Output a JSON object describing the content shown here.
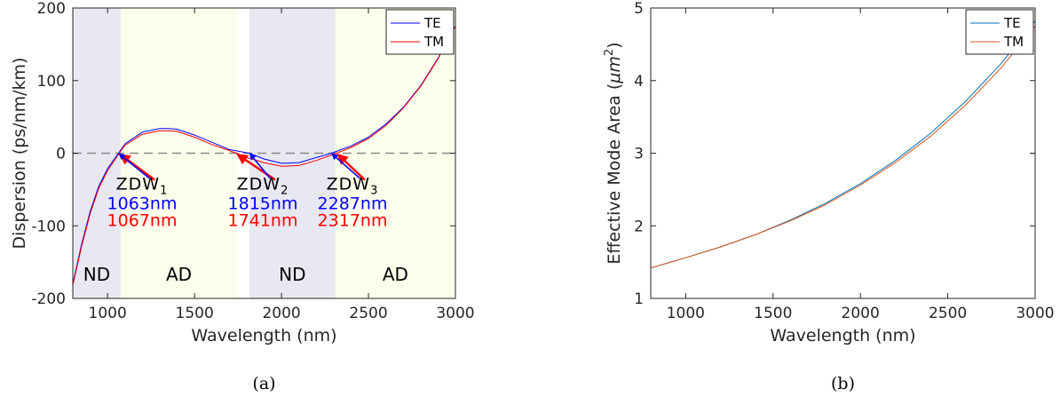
{
  "colors": {
    "te_a": "#0000ff",
    "tm_a": "#ff0000",
    "te_b": "#0072bd",
    "tm_b": "#d95319",
    "nd": "#e8e8f2",
    "ad": "#fdfdec"
  },
  "chart_data": [
    {
      "type": "line",
      "caption": "(a)",
      "xlabel": "Wavelength (nm)",
      "ylabel": "Dispersion (ps/nm/km)",
      "xlim": [
        800,
        3000
      ],
      "ylim": [
        -200,
        200
      ],
      "xticks": [
        1000,
        1500,
        2000,
        2500,
        3000
      ],
      "yticks": [
        -200,
        -100,
        0,
        100,
        200
      ],
      "legend_position": "top-right",
      "zero_line": 0,
      "regions": [
        {
          "label": "ND",
          "x0": 800,
          "x1": 1075,
          "kind": "nd"
        },
        {
          "label": "AD",
          "x0": 1075,
          "x1": 1745,
          "kind": "ad"
        },
        {
          "label": "ND",
          "x0": 1815,
          "x1": 2310,
          "kind": "nd"
        },
        {
          "label": "AD",
          "x0": 2310,
          "x1": 3000,
          "kind": "ad"
        }
      ],
      "series": [
        {
          "name": "TE",
          "x": [
            800,
            850,
            900,
            950,
            1000,
            1063,
            1100,
            1200,
            1300,
            1350,
            1400,
            1500,
            1600,
            1700,
            1815,
            1900,
            2000,
            2100,
            2200,
            2287,
            2400,
            2500,
            2600,
            2700,
            2800,
            2900,
            3000
          ],
          "y": [
            -180,
            -126,
            -80,
            -45,
            -21,
            0,
            13,
            29,
            34,
            34,
            33,
            25,
            15,
            5,
            0,
            -8,
            -14,
            -13,
            -6,
            0,
            10,
            22,
            40,
            63,
            93,
            131,
            175
          ]
        },
        {
          "name": "TM",
          "x": [
            800,
            850,
            900,
            950,
            1000,
            1067,
            1100,
            1200,
            1300,
            1350,
            1400,
            1500,
            1600,
            1741,
            1800,
            1900,
            2000,
            2100,
            2200,
            2317,
            2400,
            2500,
            2600,
            2700,
            2800,
            2900,
            3000
          ],
          "y": [
            -182,
            -129,
            -83,
            -48,
            -24,
            0,
            11,
            26,
            31,
            31,
            30,
            22,
            12,
            0,
            -6,
            -13,
            -18,
            -17,
            -10,
            0,
            8,
            20,
            38,
            62,
            92,
            130,
            175
          ]
        }
      ],
      "annotations": [
        {
          "name_base": "ZDW",
          "sub": "1",
          "te": "1063nm",
          "tm": "1067nm",
          "te_x": 1063,
          "tm_x": 1067
        },
        {
          "name_base": "ZDW",
          "sub": "2",
          "te": "1815nm",
          "tm": "1741nm",
          "te_x": 1815,
          "tm_x": 1741
        },
        {
          "name_base": "ZDW",
          "sub": "3",
          "te": "2287nm",
          "tm": "2317nm",
          "te_x": 2287,
          "tm_x": 2317
        }
      ]
    },
    {
      "type": "line",
      "caption": "(b)",
      "xlabel": "Wavelength (nm)",
      "ylabel_main": "Effective Mode Area (",
      "ylabel_unit": "μm",
      "ylabel_sup": "2",
      "ylabel_end": ")",
      "xlim": [
        800,
        3000
      ],
      "ylim": [
        1,
        5
      ],
      "xticks": [
        1000,
        1500,
        2000,
        2500,
        3000
      ],
      "yticks": [
        1,
        2,
        3,
        4,
        5
      ],
      "legend_position": "top-right",
      "series": [
        {
          "name": "TE",
          "x": [
            800,
            1000,
            1200,
            1400,
            1600,
            1800,
            2000,
            2200,
            2400,
            2600,
            2800,
            3000
          ],
          "y": [
            1.42,
            1.56,
            1.71,
            1.88,
            2.08,
            2.31,
            2.58,
            2.9,
            3.27,
            3.71,
            4.22,
            4.82
          ]
        },
        {
          "name": "TM",
          "x": [
            800,
            1000,
            1200,
            1400,
            1600,
            1800,
            2000,
            2200,
            2400,
            2600,
            2800,
            3000
          ],
          "y": [
            1.42,
            1.56,
            1.71,
            1.88,
            2.07,
            2.29,
            2.56,
            2.87,
            3.23,
            3.66,
            4.16,
            4.75
          ]
        }
      ]
    }
  ]
}
